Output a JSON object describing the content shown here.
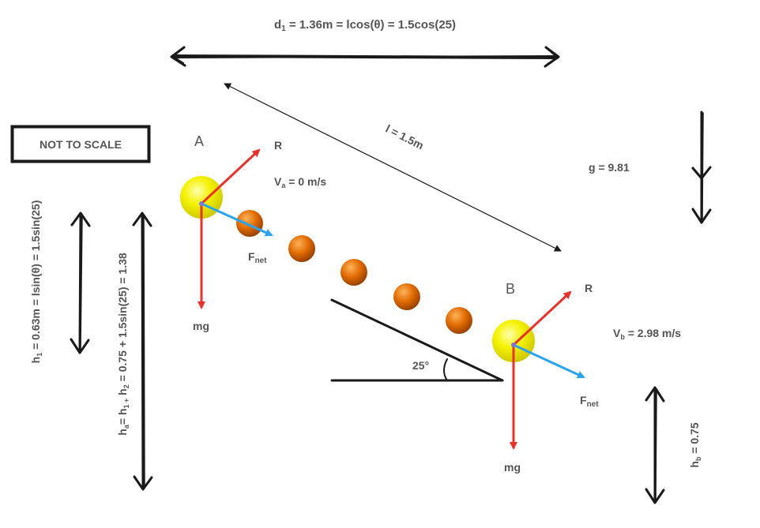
{
  "labels": {
    "d1_prefix": "d",
    "d1_sub": "1",
    "d1_rest": " = 1.36m = lcos(θ) = 1.5cos(25)",
    "l_label": "l = 1.5m",
    "not_to_scale": "NOT TO SCALE",
    "g_label": "g = 9.81",
    "point_a": "A",
    "point_b": "B",
    "r_a": "R",
    "r_b": "R",
    "va_prefix": "V",
    "va_sub": "a",
    "va_rest": " = 0 m/s",
    "vb_prefix": "V",
    "vb_sub": "b",
    "vb_rest": " = 2.98 m/s",
    "fnet_a_main": "F",
    "fnet_a_sub": "net",
    "fnet_b_main": "F",
    "fnet_b_sub": "net",
    "mg_a": "mg",
    "mg_b": "mg",
    "angle": "25°",
    "h1_prefix": "h",
    "h1_sub": "1",
    "h1_rest": " = 0.63m = lsin(θ) = 1.5sin(25)",
    "ha_prefix": "h",
    "ha_sub1": "a",
    "ha_mid1": "= h",
    "ha_sub2": "1 +",
    "ha_mid2": " h",
    "ha_sub3": "2",
    "ha_rest": " = 0.75 + 1.5sin(25) = 1.38",
    "hb_prefix": "h",
    "hb_sub": "b",
    "hb_rest": " = 0.75"
  },
  "colors": {
    "force_red": "#e8322a",
    "fnet_blue": "#2aa3f0",
    "ball_yellow": "#f2f000",
    "ball_orange": "#e06a00",
    "text_gray": "#555555",
    "ink": "#1a1a1a"
  }
}
